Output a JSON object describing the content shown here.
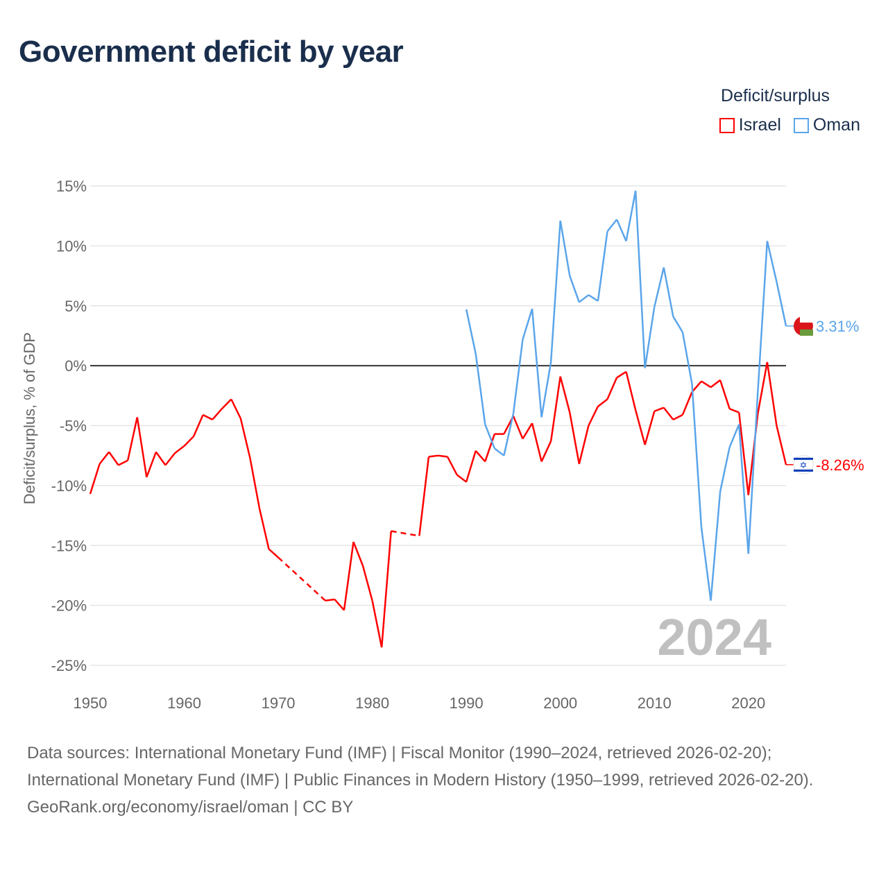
{
  "title": "Government deficit by year",
  "legend_title": "Deficit/surplus",
  "sources": "Data sources: International Monetary Fund (IMF) | Fiscal Monitor (1990–2024, retrieved 2026-02-20); International Monetary Fund (IMF) | Public Finances in Modern History (1950–1999, retrieved 2026-02-20).",
  "footer": "GeoRank.org/economy/israel/oman | CC BY",
  "chart_data": {
    "type": "line",
    "title": "Government deficit by year",
    "ylabel": "Deficit/surplus, % of GDP",
    "xlabel": "",
    "xlim": [
      1950,
      2024
    ],
    "ylim": [
      -25,
      15
    ],
    "x_ticks": [
      "1950",
      "1960",
      "1970",
      "1980",
      "1990",
      "2000",
      "2010",
      "2020"
    ],
    "y_ticks": [
      "15%",
      "10%",
      "5%",
      "0%",
      "-5%",
      "-10%",
      "-15%",
      "-20%",
      "-25%"
    ],
    "year_label": "2024",
    "series": [
      {
        "name": "Israel",
        "color": "#ff0000",
        "end_label": "-8.26%",
        "flag": "israel-flag",
        "x": [
          1950,
          1951,
          1952,
          1953,
          1954,
          1955,
          1956,
          1957,
          1958,
          1959,
          1960,
          1961,
          1962,
          1963,
          1964,
          1965,
          1966,
          1967,
          1968,
          1969,
          1970,
          1975,
          1976,
          1977,
          1978,
          1979,
          1980,
          1981,
          1982,
          1985,
          1986,
          1987,
          1988,
          1989,
          1990,
          1991,
          1992,
          1993,
          1994,
          1995,
          1996,
          1997,
          1998,
          1999,
          2000,
          2001,
          2002,
          2003,
          2004,
          2005,
          2006,
          2007,
          2008,
          2009,
          2010,
          2011,
          2012,
          2013,
          2014,
          2015,
          2016,
          2017,
          2018,
          2019,
          2020,
          2021,
          2022,
          2023,
          2024
        ],
        "y": [
          -10.7,
          -8.2,
          -7.2,
          -8.3,
          -7.9,
          -4.3,
          -9.3,
          -7.2,
          -8.3,
          -7.3,
          -6.7,
          -5.9,
          -4.1,
          -4.5,
          -3.6,
          -2.8,
          -4.4,
          -7.7,
          -11.9,
          -15.3,
          -16.0,
          -19.6,
          -19.5,
          -20.4,
          -14.7,
          -16.7,
          -19.6,
          -23.5,
          -13.8,
          -14.2,
          -7.6,
          -7.5,
          -7.6,
          -9.1,
          -9.7,
          -7.1,
          -8.0,
          -5.7,
          -5.7,
          -4.2,
          -6.1,
          -4.8,
          -8.0,
          -6.3,
          -0.9,
          -3.9,
          -8.2,
          -5.0,
          -3.4,
          -2.8,
          -1.0,
          -0.5,
          -3.7,
          -6.6,
          -3.8,
          -3.5,
          -4.5,
          -4.1,
          -2.2,
          -1.3,
          -1.8,
          -1.2,
          -3.6,
          -3.9,
          -10.8,
          -4.0,
          0.3,
          -5.0,
          -8.26
        ]
      },
      {
        "name": "Oman",
        "color": "#5aa5ea",
        "end_label": "3.31%",
        "flag": "oman-flag",
        "x": [
          1990,
          1991,
          1992,
          1993,
          1994,
          1995,
          1996,
          1997,
          1998,
          1999,
          2000,
          2001,
          2002,
          2003,
          2004,
          2005,
          2006,
          2007,
          2008,
          2009,
          2010,
          2011,
          2012,
          2013,
          2014,
          2015,
          2016,
          2017,
          2018,
          2019,
          2020,
          2021,
          2022,
          2023,
          2024
        ],
        "y": [
          4.7,
          1.0,
          -4.9,
          -6.9,
          -7.5,
          -4.0,
          2.2,
          4.75,
          -4.3,
          0.3,
          12.1,
          7.5,
          5.3,
          5.9,
          5.4,
          11.2,
          12.2,
          10.4,
          14.6,
          -0.2,
          4.9,
          8.2,
          4.1,
          2.8,
          -1.5,
          -13.5,
          -19.6,
          -10.5,
          -6.8,
          -4.9,
          -15.7,
          -2.2,
          10.4,
          7.0,
          3.31
        ]
      }
    ]
  }
}
